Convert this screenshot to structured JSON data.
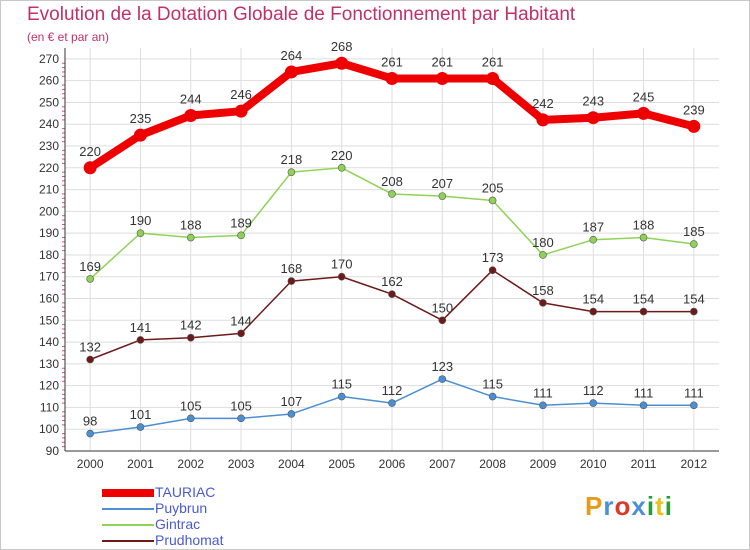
{
  "title": "Evolution de la Dotation Globale de Fonctionnement par Habitant",
  "subtitle": "(en € et par an)",
  "logo": {
    "text": "Proxiti",
    "colors": [
      "#e89a1a",
      "#4a90d9",
      "#d93a2a",
      "#4a90d9",
      "#2a9a3a",
      "#e8c21a",
      "#2a9a3a"
    ]
  },
  "chart_data": {
    "type": "line",
    "title": "Evolution de la Dotation Globale de Fonctionnement par Habitant",
    "subtitle": "(en € et par an)",
    "x": [
      2000,
      2001,
      2002,
      2003,
      2004,
      2005,
      2006,
      2007,
      2008,
      2009,
      2010,
      2011,
      2012
    ],
    "ylim": [
      90,
      275
    ],
    "yticks": [
      90,
      100,
      110,
      120,
      130,
      140,
      150,
      160,
      170,
      180,
      190,
      200,
      210,
      220,
      230,
      240,
      250,
      260,
      270
    ],
    "grid": true,
    "legend": "bottom-left",
    "series": [
      {
        "name": "TAURIAC",
        "color": "#ee0000",
        "values": [
          220,
          235,
          244,
          246,
          264,
          268,
          261,
          261,
          261,
          242,
          243,
          245,
          239
        ]
      },
      {
        "name": "Puybrun",
        "color": "#4a8fd4",
        "values": [
          98,
          101,
          105,
          105,
          107,
          115,
          112,
          123,
          115,
          111,
          112,
          111,
          111
        ]
      },
      {
        "name": "Gintrac",
        "color": "#8ed356",
        "values": [
          169,
          190,
          188,
          189,
          218,
          220,
          208,
          207,
          205,
          180,
          187,
          188,
          185
        ]
      },
      {
        "name": "Prudhomat",
        "color": "#6e1a1a",
        "values": [
          132,
          141,
          142,
          144,
          168,
          170,
          162,
          150,
          173,
          158,
          154,
          154,
          154
        ]
      }
    ]
  }
}
